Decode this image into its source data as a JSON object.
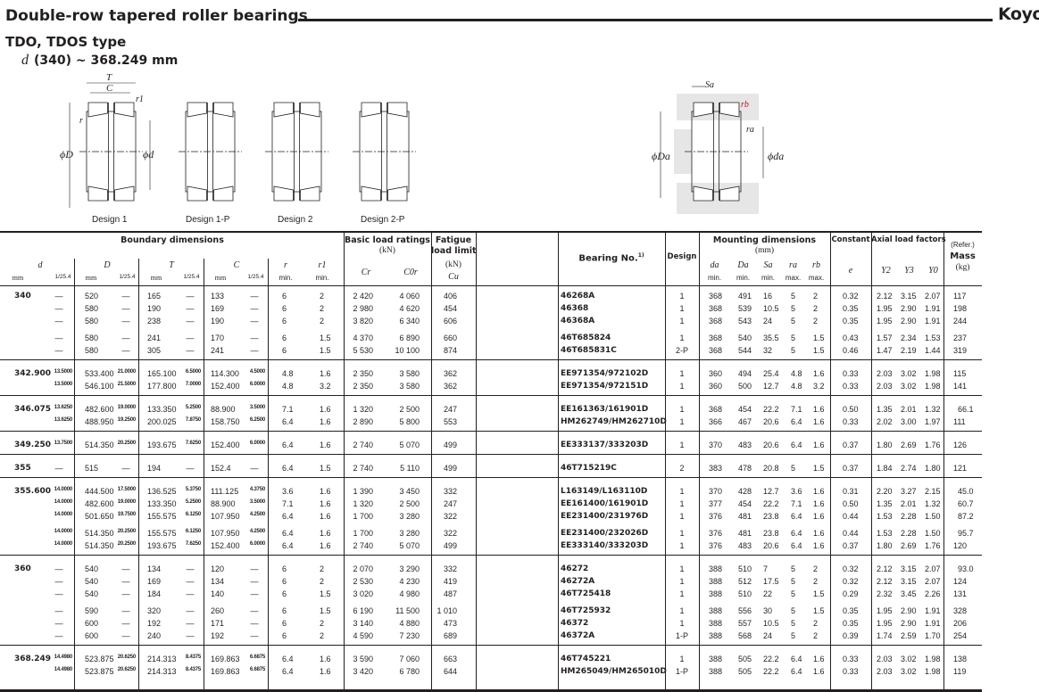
{
  "header": {
    "title": "Double-row tapered roller bearings",
    "brand": "Koyo",
    "subtitle": "TDO, TDOS type",
    "range_symbol": "d",
    "range": "(340) ~ 368.249 mm"
  },
  "diagrams": {
    "captions": [
      "Design 1",
      "Design 1-P",
      "Design 2",
      "Design 2-P"
    ],
    "labels": {
      "T": "T",
      "C": "C",
      "r1": "r1",
      "r": "r",
      "D": "ϕD",
      "d": "ϕd",
      "Sa": "Sa",
      "rb": "rb",
      "ra": "ra",
      "Da": "ϕDa",
      "da": "ϕda"
    }
  },
  "table": {
    "headers": {
      "boundary": "Boundary dimensions",
      "d": "d",
      "D": "D",
      "T": "T",
      "C": "C",
      "r": "r",
      "r1": "r1",
      "mm": "mm",
      "inch": "1/25.4",
      "min": "min.",
      "max": "max.",
      "load_ratings": "Basic load ratings",
      "kN": "(kN)",
      "Cr": "Cr",
      "C0r": "C0r",
      "fatigue1": "Fatigue",
      "fatigue2": "load limit",
      "Cu": "Cu",
      "bearing_no": "Bearing No.",
      "bearing_note": "1)",
      "design": "Design",
      "mounting": "Mounting dimensions",
      "mounting_unit": "(mm)",
      "da": "da",
      "Da": "Da",
      "Sa": "Sa",
      "ra": "ra",
      "rb": "rb",
      "constant": "Constant",
      "e": "e",
      "axial": "Axial load factors",
      "Y2": "Y2",
      "Y3": "Y3",
      "Y0": "Y0",
      "refer": "(Refer.)",
      "mass": "Mass",
      "kg": "(kg)"
    },
    "columns": [
      "d",
      "d_inch",
      "D",
      "D_inch",
      "T",
      "T_inch",
      "C",
      "C_inch",
      "r_min",
      "r1_min",
      "Cr",
      "C0r",
      "Cu",
      "bearing_no",
      "design",
      "da_min",
      "Da_min",
      "Sa_min",
      "ra_max",
      "rb_max",
      "e",
      "Y2",
      "Y3",
      "Y0",
      "mass_kg"
    ],
    "groups": [
      {
        "blocks": [
          [
            [
              "340",
              "—",
              "520",
              "—",
              "165",
              "—",
              "133",
              "—",
              "6",
              "2",
              "2 420",
              "4 060",
              "406",
              "46268A",
              "1",
              "368",
              "491",
              "16",
              "5",
              "2",
              "0.32",
              "2.12",
              "3.15",
              "2.07",
              "117"
            ],
            [
              "",
              "—",
              "580",
              "—",
              "190",
              "—",
              "169",
              "—",
              "6",
              "2",
              "2 980",
              "4 620",
              "454",
              "46368",
              "1",
              "368",
              "539",
              "10.5",
              "5",
              "2",
              "0.35",
              "1.95",
              "2.90",
              "1.91",
              "198"
            ],
            [
              "",
              "—",
              "580",
              "—",
              "238",
              "—",
              "190",
              "—",
              "6",
              "2",
              "3 820",
              "6 340",
              "606",
              "46368A",
              "1",
              "368",
              "543",
              "24",
              "5",
              "2",
              "0.35",
              "1.95",
              "2.90",
              "1.91",
              "244"
            ]
          ],
          [
            [
              "",
              "—",
              "580",
              "—",
              "241",
              "—",
              "170",
              "—",
              "6",
              "1.5",
              "4 370",
              "6 890",
              "660",
              "46T685824",
              "1",
              "368",
              "540",
              "35.5",
              "5",
              "1.5",
              "0.43",
              "1.57",
              "2.34",
              "1.53",
              "237"
            ],
            [
              "",
              "—",
              "580",
              "—",
              "305",
              "—",
              "241",
              "—",
              "6",
              "1.5",
              "5 530",
              "10 100",
              "874",
              "46T685831C",
              "2-P",
              "368",
              "544",
              "32",
              "5",
              "1.5",
              "0.46",
              "1.47",
              "2.19",
              "1.44",
              "319"
            ]
          ]
        ]
      },
      {
        "blocks": [
          [
            [
              "342.900",
              "13.5000",
              "533.400",
              "21.0000",
              "165.100",
              "6.5000",
              "114.300",
              "4.5000",
              "4.8",
              "1.6",
              "2 350",
              "3 580",
              "362",
              "EE971354/972102D",
              "1",
              "360",
              "494",
              "25.4",
              "4.8",
              "1.6",
              "0.33",
              "2.03",
              "3.02",
              "1.98",
              "115"
            ],
            [
              "",
              "13.5000",
              "546.100",
              "21.5000",
              "177.800",
              "7.0000",
              "152.400",
              "6.0000",
              "4.8",
              "3.2",
              "2 350",
              "3 580",
              "362",
              "EE971354/972151D",
              "1",
              "360",
              "500",
              "12.7",
              "4.8",
              "3.2",
              "0.33",
              "2.03",
              "3.02",
              "1.98",
              "141"
            ]
          ]
        ]
      },
      {
        "blocks": [
          [
            [
              "346.075",
              "13.6250",
              "482.600",
              "19.0000",
              "133.350",
              "5.2500",
              "88.900",
              "3.5000",
              "7.1",
              "1.6",
              "1 320",
              "2 500",
              "247",
              "EE161363/161901D",
              "1",
              "368",
              "454",
              "22.2",
              "7.1",
              "1.6",
              "0.50",
              "1.35",
              "2.01",
              "1.32",
              "66.1"
            ],
            [
              "",
              "13.6250",
              "488.950",
              "19.2500",
              "200.025",
              "7.8750",
              "158.750",
              "6.2500",
              "6.4",
              "1.6",
              "2 890",
              "5 800",
              "553",
              "HM262749/HM262710D",
              "1",
              "366",
              "467",
              "20.6",
              "6.4",
              "1.6",
              "0.33",
              "2.02",
              "3.00",
              "1.97",
              "111"
            ]
          ]
        ]
      },
      {
        "blocks": [
          [
            [
              "349.250",
              "13.7500",
              "514.350",
              "20.2500",
              "193.675",
              "7.6250",
              "152.400",
              "6.0000",
              "6.4",
              "1.6",
              "2 740",
              "5 070",
              "499",
              "EE333137/333203D",
              "1",
              "370",
              "483",
              "20.6",
              "6.4",
              "1.6",
              "0.37",
              "1.80",
              "2.69",
              "1.76",
              "126"
            ]
          ]
        ]
      },
      {
        "blocks": [
          [
            [
              "355",
              "—",
              "515",
              "—",
              "194",
              "—",
              "152.4",
              "—",
              "6.4",
              "1.5",
              "2 740",
              "5 110",
              "499",
              "46T715219C",
              "2",
              "383",
              "478",
              "20.8",
              "5",
              "1.5",
              "0.37",
              "1.84",
              "2.74",
              "1.80",
              "121"
            ]
          ]
        ]
      },
      {
        "blocks": [
          [
            [
              "355.600",
              "14.0000",
              "444.500",
              "17.5000",
              "136.525",
              "5.3750",
              "111.125",
              "4.3750",
              "3.6",
              "1.6",
              "1 390",
              "3 450",
              "332",
              "L163149/L163110D",
              "1",
              "370",
              "428",
              "12.7",
              "3.6",
              "1.6",
              "0.31",
              "2.20",
              "3.27",
              "2.15",
              "45.0"
            ],
            [
              "",
              "14.0000",
              "482.600",
              "19.0000",
              "133.350",
              "5.2500",
              "88.900",
              "3.5000",
              "7.1",
              "1.6",
              "1 320",
              "2 500",
              "247",
              "EE161400/161901D",
              "1",
              "377",
              "454",
              "22.2",
              "7.1",
              "1.6",
              "0.50",
              "1.35",
              "2.01",
              "1.32",
              "60.7"
            ],
            [
              "",
              "14.0000",
              "501.650",
              "19.7500",
              "155.575",
              "6.1250",
              "107.950",
              "4.2500",
              "6.4",
              "1.6",
              "1 700",
              "3 280",
              "322",
              "EE231400/231976D",
              "1",
              "376",
              "481",
              "23.8",
              "6.4",
              "1.6",
              "0.44",
              "1.53",
              "2.28",
              "1.50",
              "87.2"
            ]
          ],
          [
            [
              "",
              "14.0000",
              "514.350",
              "20.2500",
              "155.575",
              "6.1250",
              "107.950",
              "4.2500",
              "6.4",
              "1.6",
              "1 700",
              "3 280",
              "322",
              "EE231400/232026D",
              "1",
              "376",
              "481",
              "23.8",
              "6.4",
              "1.6",
              "0.44",
              "1.53",
              "2.28",
              "1.50",
              "95.7"
            ],
            [
              "",
              "14.0000",
              "514.350",
              "20.2500",
              "193.675",
              "7.6250",
              "152.400",
              "6.0000",
              "6.4",
              "1.6",
              "2 740",
              "5 070",
              "499",
              "EE333140/333203D",
              "1",
              "376",
              "483",
              "20.6",
              "6.4",
              "1.6",
              "0.37",
              "1.80",
              "2.69",
              "1.76",
              "120"
            ]
          ]
        ]
      },
      {
        "blocks": [
          [
            [
              "360",
              "—",
              "540",
              "—",
              "134",
              "—",
              "120",
              "—",
              "6",
              "2",
              "2 070",
              "3 290",
              "332",
              "46272",
              "1",
              "388",
              "510",
              "7",
              "5",
              "2",
              "0.32",
              "2.12",
              "3.15",
              "2.07",
              "93.0"
            ],
            [
              "",
              "—",
              "540",
              "—",
              "169",
              "—",
              "134",
              "—",
              "6",
              "2",
              "2 530",
              "4 230",
              "419",
              "46272A",
              "1",
              "388",
              "512",
              "17.5",
              "5",
              "2",
              "0.32",
              "2.12",
              "3.15",
              "2.07",
              "124"
            ],
            [
              "",
              "—",
              "540",
              "—",
              "184",
              "—",
              "140",
              "—",
              "6",
              "1.5",
              "3 020",
              "4 980",
              "487",
              "46T725418",
              "1",
              "388",
              "510",
              "22",
              "5",
              "1.5",
              "0.29",
              "2.32",
              "3.45",
              "2.26",
              "131"
            ]
          ],
          [
            [
              "",
              "—",
              "590",
              "—",
              "320",
              "—",
              "260",
              "—",
              "6",
              "1.5",
              "6 190",
              "11 500",
              "1 010",
              "46T725932",
              "1",
              "388",
              "556",
              "30",
              "5",
              "1.5",
              "0.35",
              "1.95",
              "2.90",
              "1.91",
              "328"
            ],
            [
              "",
              "—",
              "600",
              "—",
              "192",
              "—",
              "171",
              "—",
              "6",
              "2",
              "3 140",
              "4 880",
              "473",
              "46372",
              "1",
              "388",
              "557",
              "10.5",
              "5",
              "2",
              "0.35",
              "1.95",
              "2.90",
              "1.91",
              "206"
            ],
            [
              "",
              "—",
              "600",
              "—",
              "240",
              "—",
              "192",
              "—",
              "6",
              "2",
              "4 590",
              "7 230",
              "689",
              "46372A",
              "1-P",
              "388",
              "568",
              "24",
              "5",
              "2",
              "0.39",
              "1.74",
              "2.59",
              "1.70",
              "254"
            ]
          ]
        ]
      },
      {
        "blocks": [
          [
            [
              "368.249",
              "14.4980",
              "523.875",
              "20.6250",
              "214.313",
              "8.4375",
              "169.863",
              "6.6875",
              "6.4",
              "1.6",
              "3 590",
              "7 060",
              "663",
              "46T745221",
              "1",
              "388",
              "505",
              "22.2",
              "6.4",
              "1.6",
              "0.33",
              "2.03",
              "3.02",
              "1.98",
              "138"
            ],
            [
              "",
              "14.4980",
              "523.875",
              "20.6250",
              "214.313",
              "8.4375",
              "169.863",
              "6.6875",
              "6.4",
              "1.6",
              "3 420",
              "6 780",
              "644",
              "HM265049/HM265010D",
              "1-P",
              "388",
              "505",
              "22.2",
              "6.4",
              "1.6",
              "0.33",
              "2.03",
              "3.02",
              "1.98",
              "119"
            ]
          ]
        ]
      }
    ]
  },
  "colors": {
    "ink": "#231f20",
    "shade": "#e6e6e6"
  }
}
